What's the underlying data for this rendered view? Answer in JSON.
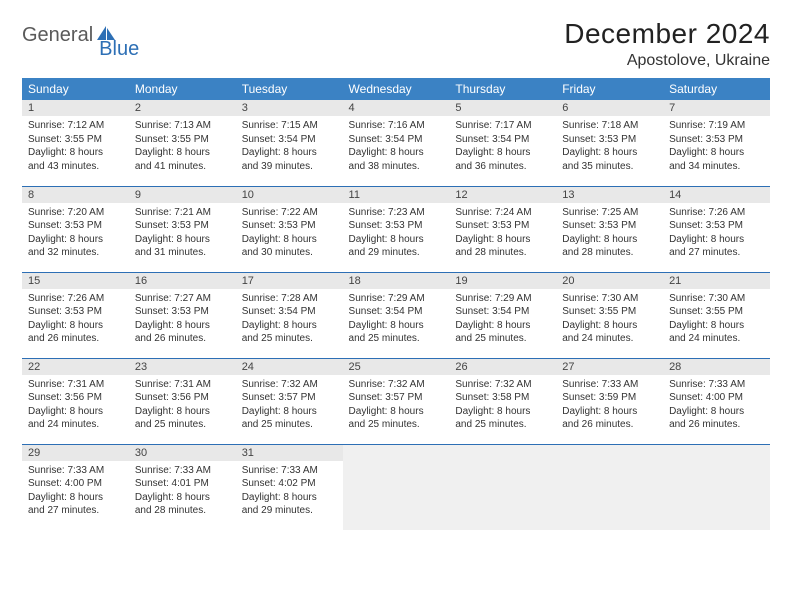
{
  "brand": {
    "part1": "General",
    "part2": "Blue"
  },
  "title": "December 2024",
  "location": "Apostolove, Ukraine",
  "colors": {
    "header_bg": "#3b82c4",
    "header_text": "#ffffff",
    "daynum_bg": "#e8e8e8",
    "border": "#2d6fb5",
    "empty_bg": "#f0f0f0",
    "brand_gray": "#5a5a5a",
    "brand_blue": "#2d6fb5"
  },
  "day_names": [
    "Sunday",
    "Monday",
    "Tuesday",
    "Wednesday",
    "Thursday",
    "Friday",
    "Saturday"
  ],
  "weeks": [
    [
      {
        "n": "1",
        "sr": "Sunrise: 7:12 AM",
        "ss": "Sunset: 3:55 PM",
        "dl1": "Daylight: 8 hours",
        "dl2": "and 43 minutes."
      },
      {
        "n": "2",
        "sr": "Sunrise: 7:13 AM",
        "ss": "Sunset: 3:55 PM",
        "dl1": "Daylight: 8 hours",
        "dl2": "and 41 minutes."
      },
      {
        "n": "3",
        "sr": "Sunrise: 7:15 AM",
        "ss": "Sunset: 3:54 PM",
        "dl1": "Daylight: 8 hours",
        "dl2": "and 39 minutes."
      },
      {
        "n": "4",
        "sr": "Sunrise: 7:16 AM",
        "ss": "Sunset: 3:54 PM",
        "dl1": "Daylight: 8 hours",
        "dl2": "and 38 minutes."
      },
      {
        "n": "5",
        "sr": "Sunrise: 7:17 AM",
        "ss": "Sunset: 3:54 PM",
        "dl1": "Daylight: 8 hours",
        "dl2": "and 36 minutes."
      },
      {
        "n": "6",
        "sr": "Sunrise: 7:18 AM",
        "ss": "Sunset: 3:53 PM",
        "dl1": "Daylight: 8 hours",
        "dl2": "and 35 minutes."
      },
      {
        "n": "7",
        "sr": "Sunrise: 7:19 AM",
        "ss": "Sunset: 3:53 PM",
        "dl1": "Daylight: 8 hours",
        "dl2": "and 34 minutes."
      }
    ],
    [
      {
        "n": "8",
        "sr": "Sunrise: 7:20 AM",
        "ss": "Sunset: 3:53 PM",
        "dl1": "Daylight: 8 hours",
        "dl2": "and 32 minutes."
      },
      {
        "n": "9",
        "sr": "Sunrise: 7:21 AM",
        "ss": "Sunset: 3:53 PM",
        "dl1": "Daylight: 8 hours",
        "dl2": "and 31 minutes."
      },
      {
        "n": "10",
        "sr": "Sunrise: 7:22 AM",
        "ss": "Sunset: 3:53 PM",
        "dl1": "Daylight: 8 hours",
        "dl2": "and 30 minutes."
      },
      {
        "n": "11",
        "sr": "Sunrise: 7:23 AM",
        "ss": "Sunset: 3:53 PM",
        "dl1": "Daylight: 8 hours",
        "dl2": "and 29 minutes."
      },
      {
        "n": "12",
        "sr": "Sunrise: 7:24 AM",
        "ss": "Sunset: 3:53 PM",
        "dl1": "Daylight: 8 hours",
        "dl2": "and 28 minutes."
      },
      {
        "n": "13",
        "sr": "Sunrise: 7:25 AM",
        "ss": "Sunset: 3:53 PM",
        "dl1": "Daylight: 8 hours",
        "dl2": "and 28 minutes."
      },
      {
        "n": "14",
        "sr": "Sunrise: 7:26 AM",
        "ss": "Sunset: 3:53 PM",
        "dl1": "Daylight: 8 hours",
        "dl2": "and 27 minutes."
      }
    ],
    [
      {
        "n": "15",
        "sr": "Sunrise: 7:26 AM",
        "ss": "Sunset: 3:53 PM",
        "dl1": "Daylight: 8 hours",
        "dl2": "and 26 minutes."
      },
      {
        "n": "16",
        "sr": "Sunrise: 7:27 AM",
        "ss": "Sunset: 3:53 PM",
        "dl1": "Daylight: 8 hours",
        "dl2": "and 26 minutes."
      },
      {
        "n": "17",
        "sr": "Sunrise: 7:28 AM",
        "ss": "Sunset: 3:54 PM",
        "dl1": "Daylight: 8 hours",
        "dl2": "and 25 minutes."
      },
      {
        "n": "18",
        "sr": "Sunrise: 7:29 AM",
        "ss": "Sunset: 3:54 PM",
        "dl1": "Daylight: 8 hours",
        "dl2": "and 25 minutes."
      },
      {
        "n": "19",
        "sr": "Sunrise: 7:29 AM",
        "ss": "Sunset: 3:54 PM",
        "dl1": "Daylight: 8 hours",
        "dl2": "and 25 minutes."
      },
      {
        "n": "20",
        "sr": "Sunrise: 7:30 AM",
        "ss": "Sunset: 3:55 PM",
        "dl1": "Daylight: 8 hours",
        "dl2": "and 24 minutes."
      },
      {
        "n": "21",
        "sr": "Sunrise: 7:30 AM",
        "ss": "Sunset: 3:55 PM",
        "dl1": "Daylight: 8 hours",
        "dl2": "and 24 minutes."
      }
    ],
    [
      {
        "n": "22",
        "sr": "Sunrise: 7:31 AM",
        "ss": "Sunset: 3:56 PM",
        "dl1": "Daylight: 8 hours",
        "dl2": "and 24 minutes."
      },
      {
        "n": "23",
        "sr": "Sunrise: 7:31 AM",
        "ss": "Sunset: 3:56 PM",
        "dl1": "Daylight: 8 hours",
        "dl2": "and 25 minutes."
      },
      {
        "n": "24",
        "sr": "Sunrise: 7:32 AM",
        "ss": "Sunset: 3:57 PM",
        "dl1": "Daylight: 8 hours",
        "dl2": "and 25 minutes."
      },
      {
        "n": "25",
        "sr": "Sunrise: 7:32 AM",
        "ss": "Sunset: 3:57 PM",
        "dl1": "Daylight: 8 hours",
        "dl2": "and 25 minutes."
      },
      {
        "n": "26",
        "sr": "Sunrise: 7:32 AM",
        "ss": "Sunset: 3:58 PM",
        "dl1": "Daylight: 8 hours",
        "dl2": "and 25 minutes."
      },
      {
        "n": "27",
        "sr": "Sunrise: 7:33 AM",
        "ss": "Sunset: 3:59 PM",
        "dl1": "Daylight: 8 hours",
        "dl2": "and 26 minutes."
      },
      {
        "n": "28",
        "sr": "Sunrise: 7:33 AM",
        "ss": "Sunset: 4:00 PM",
        "dl1": "Daylight: 8 hours",
        "dl2": "and 26 minutes."
      }
    ],
    [
      {
        "n": "29",
        "sr": "Sunrise: 7:33 AM",
        "ss": "Sunset: 4:00 PM",
        "dl1": "Daylight: 8 hours",
        "dl2": "and 27 minutes."
      },
      {
        "n": "30",
        "sr": "Sunrise: 7:33 AM",
        "ss": "Sunset: 4:01 PM",
        "dl1": "Daylight: 8 hours",
        "dl2": "and 28 minutes."
      },
      {
        "n": "31",
        "sr": "Sunrise: 7:33 AM",
        "ss": "Sunset: 4:02 PM",
        "dl1": "Daylight: 8 hours",
        "dl2": "and 29 minutes."
      },
      null,
      null,
      null,
      null
    ]
  ]
}
